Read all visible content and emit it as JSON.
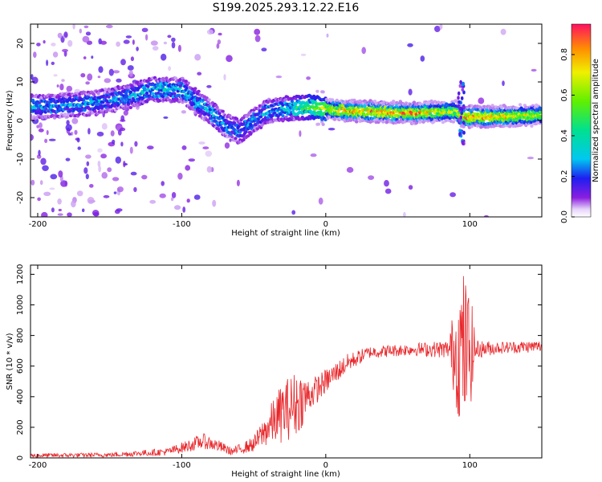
{
  "title": "S199.2025.293.12.22.E16",
  "chart_data": [
    {
      "type": "heatmap",
      "name": "spectrogram",
      "xlabel": "Height of straight line (km)",
      "ylabel": "Frequency (Hz)",
      "xlim": [
        -205,
        150
      ],
      "ylim": [
        -25,
        25
      ],
      "xticks": [
        -200,
        -100,
        0,
        100
      ],
      "yticks": [
        -20,
        -10,
        0,
        10,
        20
      ],
      "colorbar": {
        "label": "Normalized spectral amplitude",
        "range": [
          0.0,
          0.95
        ],
        "ticks": [
          0.0,
          0.2,
          0.4,
          0.6,
          0.8
        ]
      },
      "band_center": [
        {
          "x": -200,
          "y": 3.5
        },
        {
          "x": -180,
          "y": 4
        },
        {
          "x": -160,
          "y": 4.5
        },
        {
          "x": -140,
          "y": 6
        },
        {
          "x": -120,
          "y": 8
        },
        {
          "x": -100,
          "y": 8
        },
        {
          "x": -90,
          "y": 5
        },
        {
          "x": -80,
          "y": 2
        },
        {
          "x": -70,
          "y": -1
        },
        {
          "x": -60,
          "y": -3
        },
        {
          "x": -50,
          "y": 0
        },
        {
          "x": -40,
          "y": 2.5
        },
        {
          "x": -30,
          "y": 3
        },
        {
          "x": -10,
          "y": 3.5
        },
        {
          "x": 0,
          "y": 3
        },
        {
          "x": 20,
          "y": 2.5
        },
        {
          "x": 60,
          "y": 2
        },
        {
          "x": 90,
          "y": 2.5
        },
        {
          "x": 95,
          "y": 1
        },
        {
          "x": 110,
          "y": 1
        },
        {
          "x": 130,
          "y": 1.2
        },
        {
          "x": 150,
          "y": 1.5
        }
      ],
      "band_amplitude": [
        {
          "x": -200,
          "v": 0.3
        },
        {
          "x": -150,
          "v": 0.3
        },
        {
          "x": -125,
          "v": 0.35
        },
        {
          "x": -100,
          "v": 0.35
        },
        {
          "x": -60,
          "v": 0.3
        },
        {
          "x": -30,
          "v": 0.35
        },
        {
          "x": -10,
          "v": 0.55
        },
        {
          "x": 0,
          "v": 0.75
        },
        {
          "x": 20,
          "v": 0.9
        },
        {
          "x": 60,
          "v": 0.9
        },
        {
          "x": 90,
          "v": 0.7
        },
        {
          "x": 100,
          "v": 0.95
        },
        {
          "x": 150,
          "v": 0.7
        }
      ]
    },
    {
      "type": "line",
      "name": "snr",
      "xlabel": "Height of straight line (km)",
      "ylabel": "SNR (10 * v/v)",
      "xlim": [
        -205,
        150
      ],
      "ylim": [
        0,
        1260
      ],
      "xticks": [
        -200,
        -100,
        0,
        100
      ],
      "yticks": [
        0,
        200,
        400,
        600,
        800,
        1000,
        1200
      ],
      "color": "#e8262a",
      "envelope": [
        {
          "x": -205,
          "mean": 15,
          "amp": 15
        },
        {
          "x": -150,
          "mean": 20,
          "amp": 15
        },
        {
          "x": -110,
          "mean": 40,
          "amp": 25
        },
        {
          "x": -95,
          "mean": 80,
          "amp": 40
        },
        {
          "x": -85,
          "mean": 110,
          "amp": 50
        },
        {
          "x": -75,
          "mean": 80,
          "amp": 40
        },
        {
          "x": -65,
          "mean": 40,
          "amp": 25
        },
        {
          "x": -50,
          "mean": 90,
          "amp": 50
        },
        {
          "x": -40,
          "mean": 200,
          "amp": 120
        },
        {
          "x": -30,
          "mean": 300,
          "amp": 200
        },
        {
          "x": -20,
          "mean": 360,
          "amp": 220
        },
        {
          "x": -10,
          "mean": 420,
          "amp": 100
        },
        {
          "x": 0,
          "mean": 500,
          "amp": 80
        },
        {
          "x": 15,
          "mean": 620,
          "amp": 60
        },
        {
          "x": 30,
          "mean": 690,
          "amp": 40
        },
        {
          "x": 60,
          "mean": 710,
          "amp": 40
        },
        {
          "x": 85,
          "mean": 710,
          "amp": 60
        },
        {
          "x": 90,
          "mean": 700,
          "amp": 350
        },
        {
          "x": 95,
          "mean": 700,
          "amp": 550
        },
        {
          "x": 100,
          "mean": 700,
          "amp": 400
        },
        {
          "x": 105,
          "mean": 710,
          "amp": 60
        },
        {
          "x": 120,
          "mean": 720,
          "amp": 40
        },
        {
          "x": 150,
          "mean": 730,
          "amp": 40
        }
      ]
    }
  ]
}
